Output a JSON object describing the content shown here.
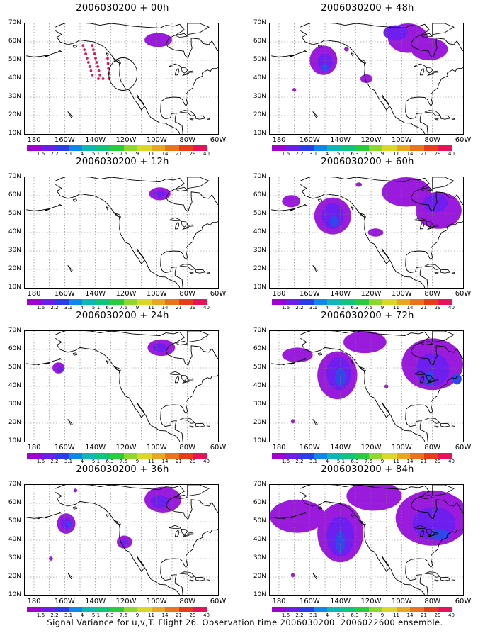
{
  "panels": [
    {
      "title": "2006030200 + 00h",
      "blobs": [
        {
          "lon": -99,
          "lat": 61,
          "rx": 9,
          "ry": 3.8,
          "level": 1
        }
      ],
      "dots": true
    },
    {
      "title": "2006030200 + 12h",
      "blobs": [
        {
          "lon": -98,
          "lat": 61,
          "rx": 7,
          "ry": 3.5,
          "level": 1
        },
        {
          "lon": -98,
          "lat": 61,
          "rx": 3.5,
          "ry": 1.8,
          "level": 2
        }
      ]
    },
    {
      "title": "2006030200 + 24h",
      "blobs": [
        {
          "lon": -97,
          "lat": 61,
          "rx": 9,
          "ry": 4.5,
          "level": 1
        },
        {
          "lon": -98,
          "lat": 61,
          "rx": 4.5,
          "ry": 2.4,
          "level": 2
        },
        {
          "lon": -164,
          "lat": 50,
          "rx": 4,
          "ry": 3,
          "level": 1
        },
        {
          "lon": -163,
          "lat": 49,
          "rx": 2,
          "ry": 1.6,
          "level": 2
        }
      ]
    },
    {
      "title": "2006030200 + 36h",
      "blobs": [
        {
          "lon": -96,
          "lat": 62,
          "rx": 12,
          "ry": 7,
          "level": 1
        },
        {
          "lon": -98,
          "lat": 61,
          "rx": 6,
          "ry": 3.5,
          "level": 2
        },
        {
          "lon": -159,
          "lat": 49,
          "rx": 6,
          "ry": 5.5,
          "level": 1
        },
        {
          "lon": -159,
          "lat": 49,
          "rx": 3.4,
          "ry": 3,
          "level": 2
        },
        {
          "lon": -157,
          "lat": 48.5,
          "rx": 1.5,
          "ry": 1.2,
          "level": 3
        },
        {
          "lon": -121,
          "lat": 39,
          "rx": 5,
          "ry": 3.5,
          "level": 1
        },
        {
          "lon": -121,
          "lat": 39,
          "rx": 2.5,
          "ry": 1.8,
          "level": 2
        },
        {
          "lon": -169,
          "lat": 30,
          "rx": 1.3,
          "ry": 1.1,
          "level": 1
        },
        {
          "lon": -153,
          "lat": 67,
          "rx": 1.2,
          "ry": 1,
          "level": 1
        }
      ]
    },
    {
      "title": "2006030200 + 48h",
      "blobs": [
        {
          "lon": -151,
          "lat": 50,
          "rx": 9,
          "ry": 8,
          "level": 1
        },
        {
          "lon": -150,
          "lat": 49,
          "rx": 5,
          "ry": 4.5,
          "level": 2
        },
        {
          "lon": -150,
          "lat": 46,
          "rx": 2.5,
          "ry": 2,
          "level": 3
        },
        {
          "lon": -96,
          "lat": 62,
          "rx": 13,
          "ry": 8,
          "level": 1
        },
        {
          "lon": -82,
          "lat": 56,
          "rx": 12,
          "ry": 6,
          "level": 1
        },
        {
          "lon": -104,
          "lat": 65,
          "rx": 8,
          "ry": 4,
          "level": 2
        },
        {
          "lon": -123,
          "lat": 40,
          "rx": 4,
          "ry": 2.3,
          "level": 1
        },
        {
          "lon": -170,
          "lat": 34,
          "rx": 1.2,
          "ry": 1,
          "level": 1
        },
        {
          "lon": -136,
          "lat": 56,
          "rx": 1.5,
          "ry": 1.2,
          "level": 1
        }
      ]
    },
    {
      "title": "2006030200 + 60h",
      "blobs": [
        {
          "lon": -145,
          "lat": 49,
          "rx": 12,
          "ry": 10,
          "level": 1
        },
        {
          "lon": -145,
          "lat": 49,
          "rx": 7,
          "ry": 7,
          "level": 2
        },
        {
          "lon": -144,
          "lat": 46,
          "rx": 3,
          "ry": 3,
          "level": 3
        },
        {
          "lon": -172,
          "lat": 57,
          "rx": 6,
          "ry": 3.3,
          "level": 1
        },
        {
          "lon": -97,
          "lat": 62,
          "rx": 16,
          "ry": 8,
          "level": 1
        },
        {
          "lon": -76,
          "lat": 52,
          "rx": 15,
          "ry": 10,
          "level": 1
        },
        {
          "lon": -78,
          "lat": 56,
          "rx": 8,
          "ry": 5,
          "level": 2
        },
        {
          "lon": -117,
          "lat": 40,
          "rx": 5,
          "ry": 2.2,
          "level": 1
        },
        {
          "lon": -128,
          "lat": 66,
          "rx": 2,
          "ry": 1.2,
          "level": 1
        }
      ]
    },
    {
      "title": "2006030200 + 72h",
      "blobs": [
        {
          "lon": -142,
          "lat": 46,
          "rx": 13,
          "ry": 13,
          "level": 1
        },
        {
          "lon": -141,
          "lat": 47,
          "rx": 8,
          "ry": 9,
          "level": 2
        },
        {
          "lon": -140,
          "lat": 45,
          "rx": 3.5,
          "ry": 5,
          "level": 3
        },
        {
          "lon": -168,
          "lat": 57,
          "rx": 10,
          "ry": 4,
          "level": 1
        },
        {
          "lon": -124,
          "lat": 64,
          "rx": 14,
          "ry": 6,
          "level": 1
        },
        {
          "lon": -80,
          "lat": 52,
          "rx": 20,
          "ry": 14,
          "level": 1
        },
        {
          "lon": -80,
          "lat": 49,
          "rx": 11,
          "ry": 9,
          "level": 2
        },
        {
          "lon": -82,
          "lat": 44,
          "rx": 3,
          "ry": 4,
          "level": 3
        },
        {
          "lon": -64,
          "lat": 44,
          "rx": 3,
          "ry": 3,
          "level": 3
        },
        {
          "lon": -171,
          "lat": 21,
          "rx": 1.2,
          "ry": 1.2,
          "level": 1
        },
        {
          "lon": -110,
          "lat": 40,
          "rx": 1.3,
          "ry": 1,
          "level": 1
        }
      ]
    },
    {
      "title": "2006030200 + 84h",
      "blobs": [
        {
          "lon": -140,
          "lat": 44,
          "rx": 15,
          "ry": 16,
          "level": 1
        },
        {
          "lon": -140,
          "lat": 42,
          "rx": 9,
          "ry": 11,
          "level": 2
        },
        {
          "lon": -140,
          "lat": 39,
          "rx": 3,
          "ry": 6,
          "level": 3
        },
        {
          "lon": -168,
          "lat": 53,
          "rx": 18,
          "ry": 9,
          "level": 1
        },
        {
          "lon": -118,
          "lat": 64,
          "rx": 18,
          "ry": 8,
          "level": 1
        },
        {
          "lon": -80,
          "lat": 52,
          "rx": 24,
          "ry": 15,
          "level": 1
        },
        {
          "lon": -79,
          "lat": 49,
          "rx": 14,
          "ry": 9,
          "level": 2
        },
        {
          "lon": -75,
          "lat": 43,
          "rx": 6,
          "ry": 3,
          "level": 3
        },
        {
          "lon": -171,
          "lat": 21,
          "rx": 1.2,
          "ry": 1.2,
          "level": 1
        }
      ]
    }
  ],
  "map": {
    "lon_range": [
      -186,
      -60
    ],
    "lat_range": [
      10,
      70
    ],
    "y_labels": [
      "70N",
      "60N",
      "50N",
      "40N",
      "30N",
      "20N",
      "10N"
    ],
    "x_labels": [
      "180",
      "160W",
      "140W",
      "120W",
      "100W",
      "80W",
      "60W"
    ],
    "x_label_lons": [
      -180,
      -160,
      -140,
      -120,
      -100,
      -80,
      -60
    ]
  },
  "colorbar": {
    "colors": [
      "#a000d0",
      "#6a1ee8",
      "#2c3ce6",
      "#0f86ea",
      "#0fb6b6",
      "#10c47c",
      "#29cc3c",
      "#8ed72f",
      "#d8d72a",
      "#e8a623",
      "#e8741c",
      "#e63c18",
      "#e6125a"
    ],
    "labels": [
      "1.6",
      "2.2",
      "3.1",
      "4",
      "5.1",
      "6.3",
      "7.5",
      "9",
      "11",
      "14",
      "21",
      "29",
      "40"
    ]
  },
  "level_colors": {
    "1": "#9b1bdc",
    "2": "#6e1ff0",
    "3": "#3047ea"
  },
  "caption": "Signal Variance for u,v,T. Flight 26. Observation time 2006030200. 2006022600 ensemble."
}
